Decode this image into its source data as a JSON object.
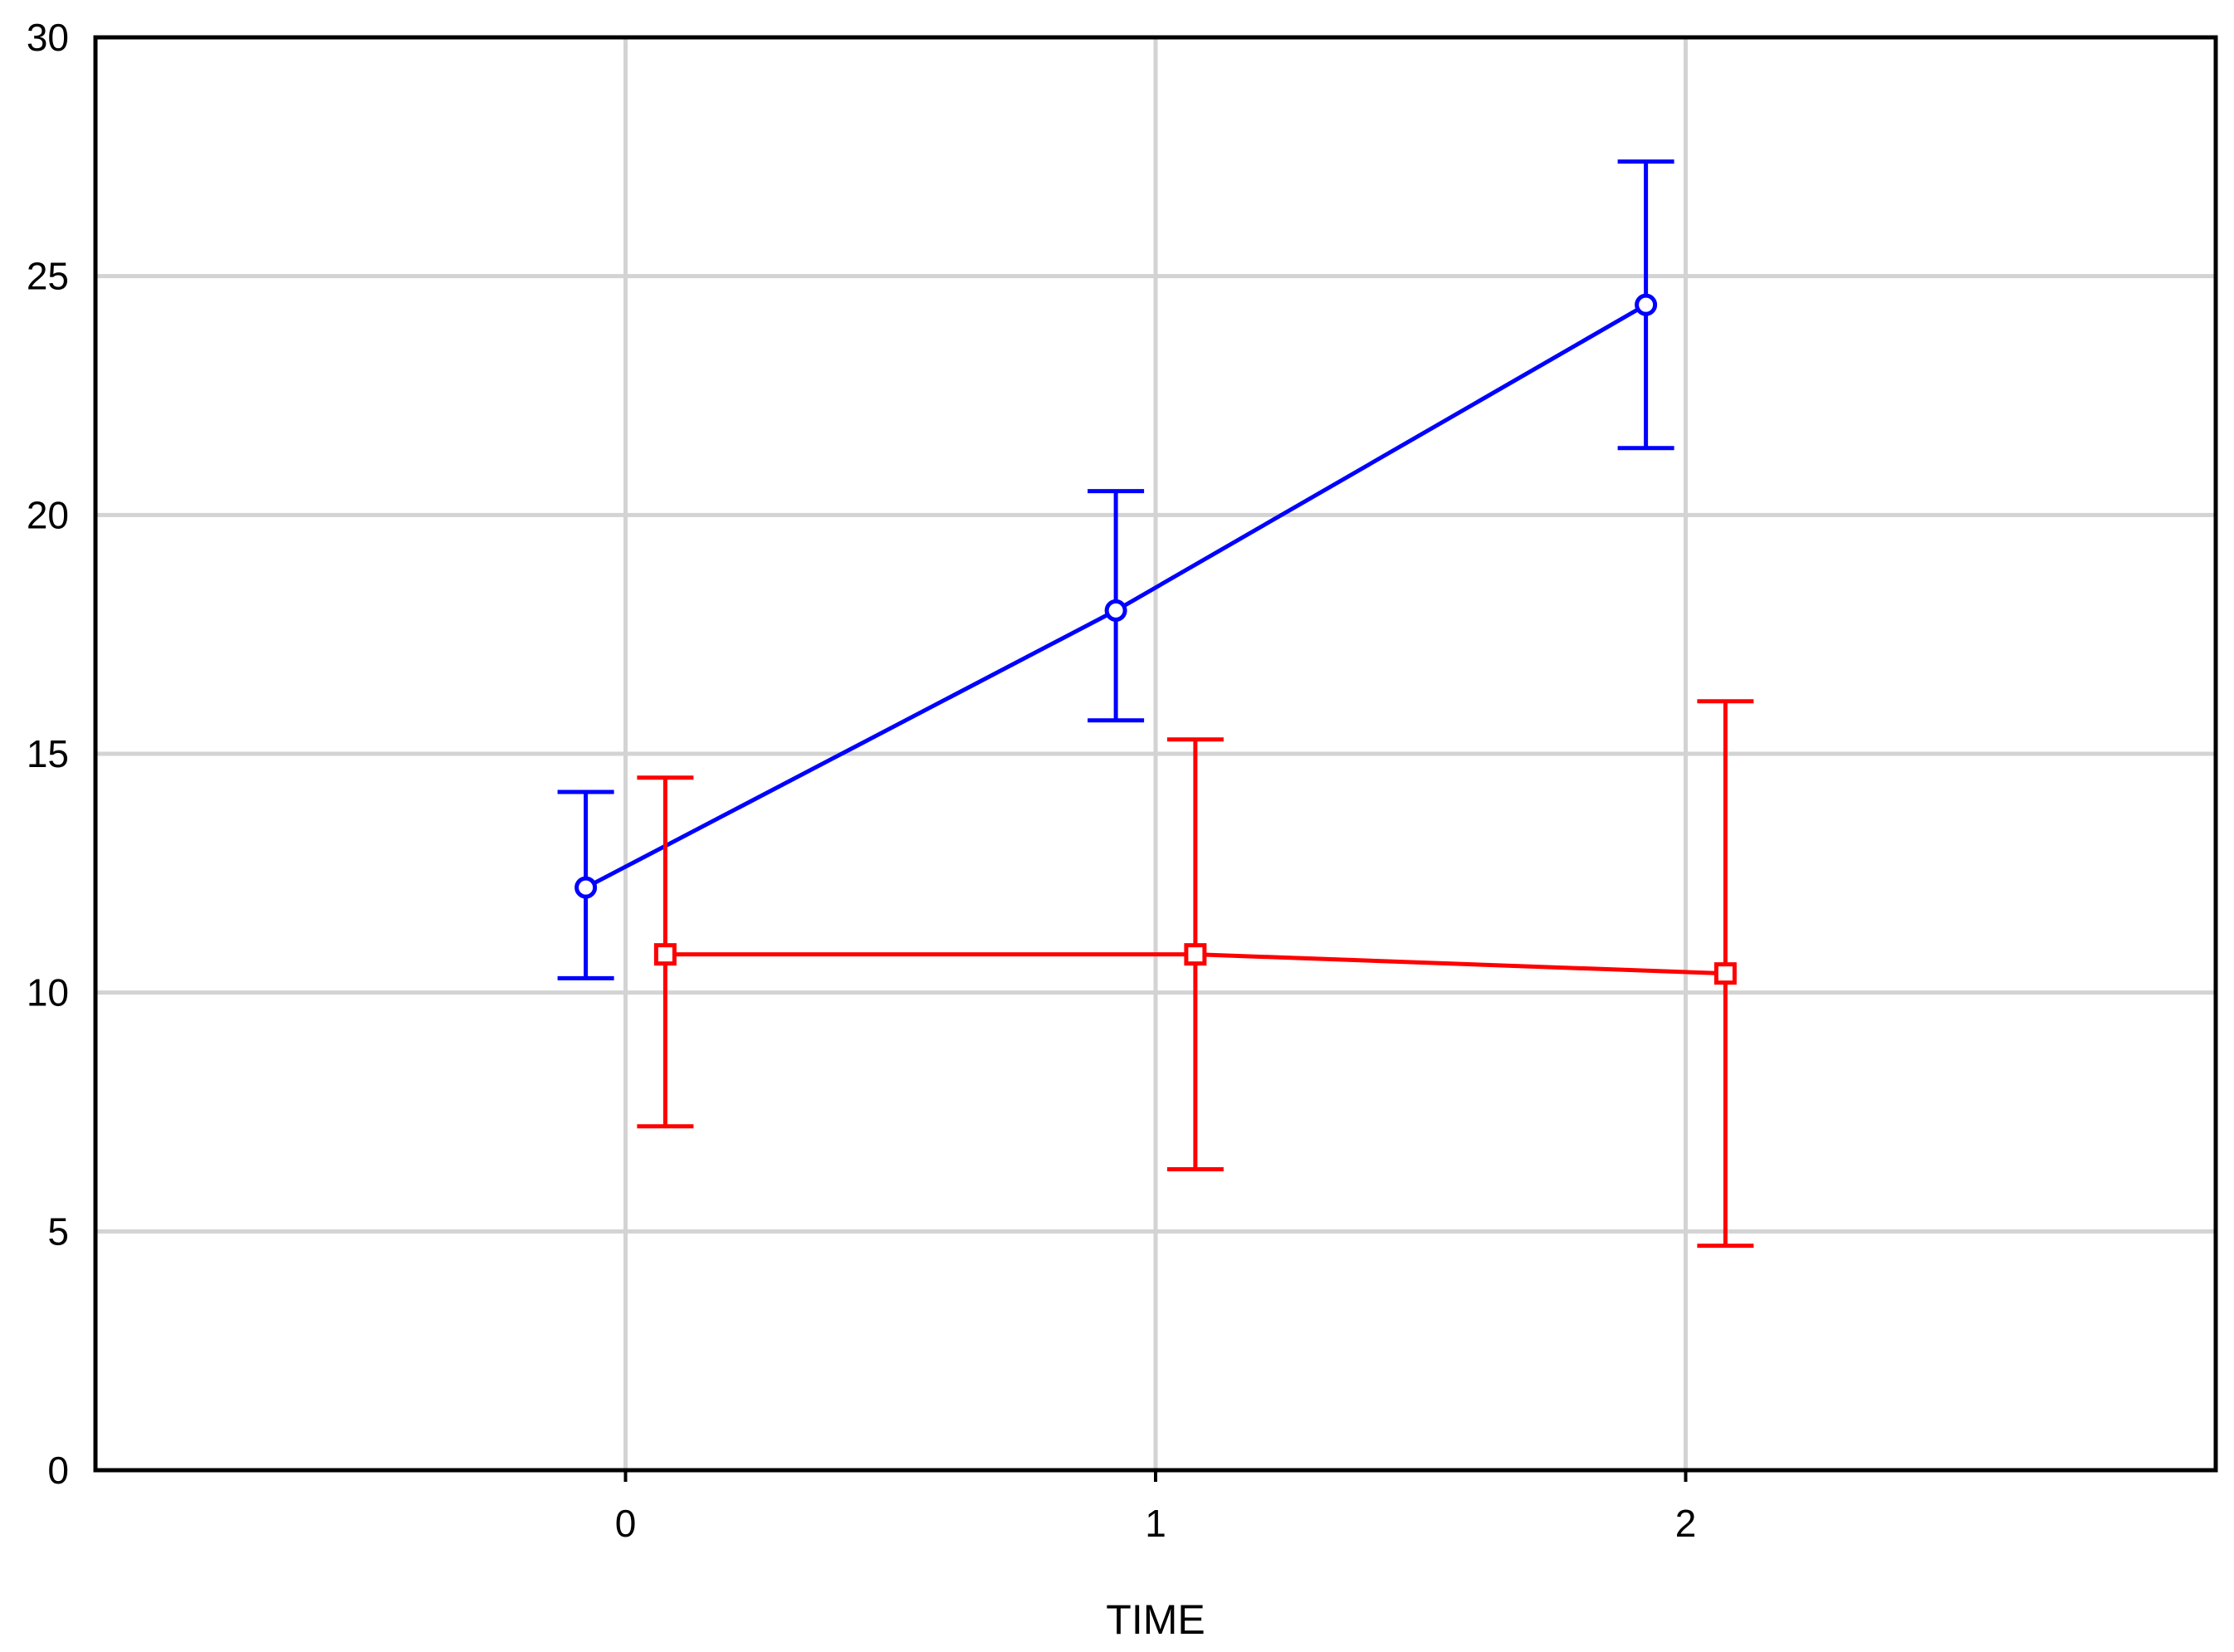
{
  "chart_data": {
    "type": "line",
    "title": "",
    "xlabel": "TIME",
    "ylabel": "",
    "x_ticks": [
      0,
      1,
      2
    ],
    "y_ticks": [
      0,
      5,
      10,
      15,
      20,
      25,
      30
    ],
    "xlim": [
      -1,
      3
    ],
    "ylim": [
      0,
      30
    ],
    "grid": true,
    "legend": "none",
    "series": [
      {
        "color": "#0000ff",
        "marker": "circle",
        "points": [
          {
            "x": 0,
            "y": 12.2,
            "lower": 10.3,
            "upper": 14.2
          },
          {
            "x": 1,
            "y": 18.0,
            "lower": 15.7,
            "upper": 20.5
          },
          {
            "x": 2,
            "y": 24.4,
            "lower": 21.4,
            "upper": 27.4
          }
        ]
      },
      {
        "color": "#ff0000",
        "marker": "square",
        "points": [
          {
            "x": 0,
            "y": 10.8,
            "lower": 7.2,
            "upper": 14.5
          },
          {
            "x": 1,
            "y": 10.8,
            "lower": 6.3,
            "upper": 15.3
          },
          {
            "x": 2,
            "y": 10.4,
            "lower": 4.7,
            "upper": 16.1
          }
        ]
      }
    ]
  }
}
